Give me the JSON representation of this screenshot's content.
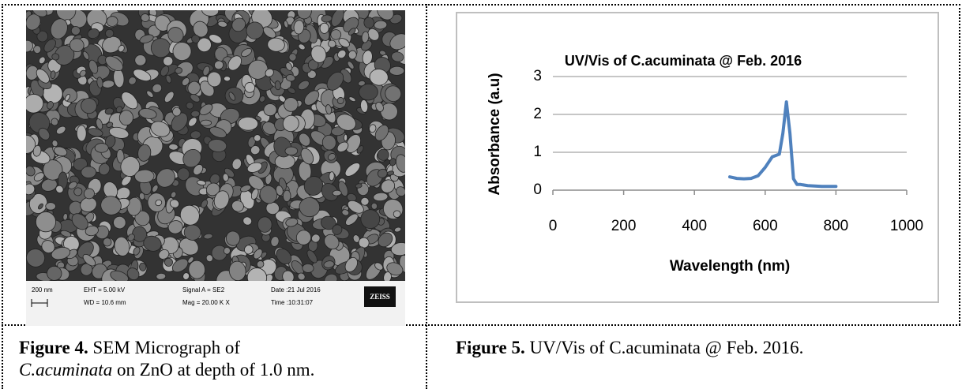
{
  "figure4": {
    "image_info": {
      "scale": "200 nm",
      "eht": "EHT = 5.00 kV",
      "wd": "WD = 10.6 mm",
      "signal": "Signal A = SE2",
      "mag": "Mag = 20.00 K X",
      "date": "Date :21 Jul 2016",
      "time": "Time :10:31:07",
      "brand": "ZEISS"
    },
    "caption": {
      "label": "Figure 4.",
      "text1": "SEM Micrograph of",
      "species": "C.acuminata",
      "text2": "on ZnO at depth of 1.0 nm."
    }
  },
  "chart_data": {
    "type": "line",
    "title": "UV/Vis of C.acuminata @ Feb. 2016",
    "x_label": "Wavelength (nm)",
    "y_label": "Absorbance (a.u)",
    "x": [
      500,
      520,
      540,
      560,
      580,
      600,
      620,
      640,
      650,
      660,
      670,
      680,
      690,
      700,
      720,
      740,
      760,
      780,
      800
    ],
    "values": [
      0.35,
      0.31,
      0.3,
      0.31,
      0.38,
      0.6,
      0.88,
      0.95,
      1.5,
      2.33,
      1.5,
      0.3,
      0.15,
      0.15,
      0.12,
      0.11,
      0.1,
      0.1,
      0.1
    ],
    "color": "#4f81bd",
    "xlim": [
      0,
      1000
    ],
    "ylim": [
      0,
      3
    ],
    "xticks": [
      0,
      200,
      400,
      600,
      800,
      1000
    ],
    "yticks": [
      0,
      1,
      2,
      3
    ],
    "grid": true
  },
  "figure5": {
    "caption": {
      "label": "Figure 5.",
      "text": "UV/Vis of C.acuminata @ Feb. 2016."
    }
  }
}
